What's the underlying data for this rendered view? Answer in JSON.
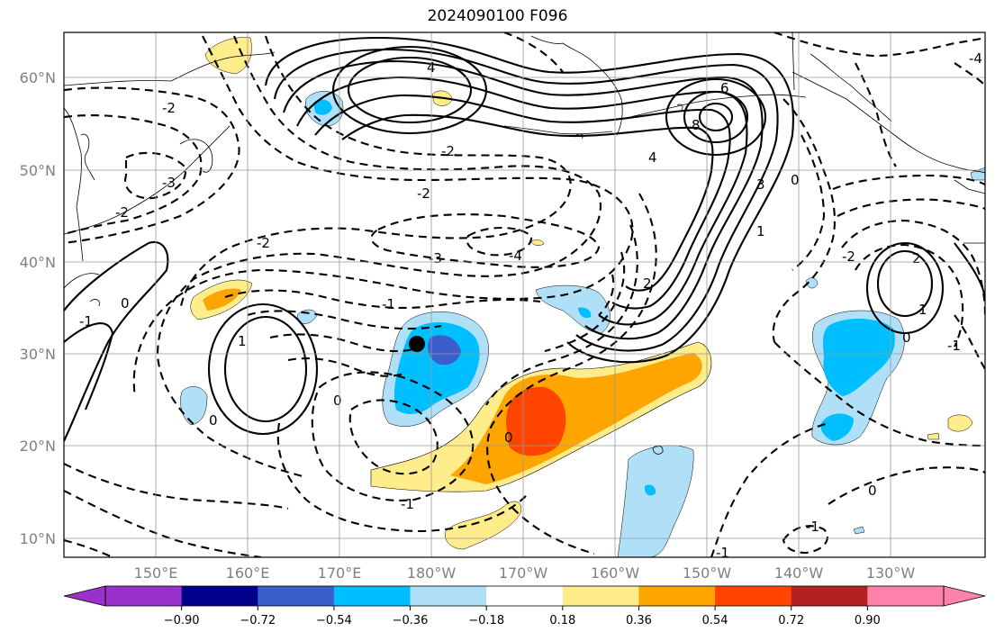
{
  "title": "2024090100 F096",
  "lat_labels": [
    "60°N",
    "50°N",
    "40°N",
    "30°N",
    "20°N",
    "10°N"
  ],
  "lon_labels": [
    "150°E",
    "160°E",
    "170°E",
    "180°W",
    "170°W",
    "160°W",
    "150°W",
    "140°W",
    "130°W"
  ],
  "colorbar": {
    "colors": [
      "#9932cc",
      "#00008b",
      "#3a5fcd",
      "#00bfff",
      "#b0e0f8",
      "#ffffff",
      "#ffec8b",
      "#ffa500",
      "#ff4500",
      "#b22222",
      "#ff82ab"
    ],
    "tick_labels": [
      "−0.90",
      "−0.72",
      "−0.54",
      "−0.36",
      "−0.18",
      "0.18",
      "0.36",
      "0.54",
      "0.72",
      "0.90"
    ]
  },
  "contour_labels": [
    "4",
    "6",
    "8",
    "4",
    "3",
    "0",
    "1",
    "2",
    "-2",
    "-2",
    "-3",
    "-2",
    "-2",
    "-3",
    "-4",
    "-1",
    "-1",
    "0",
    "1",
    "0",
    "-2",
    "0",
    "-1",
    "0",
    "-1",
    "2",
    "1",
    "0",
    "-2",
    "-1",
    "0",
    "-1",
    "-4"
  ],
  "marker": "storm-center"
}
